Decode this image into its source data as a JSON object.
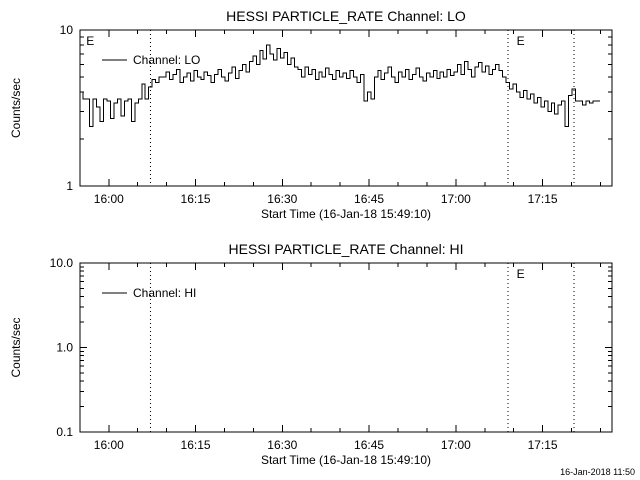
{
  "page": {
    "timestamp": "16-Jan-2018 11:50",
    "background": "#ffffff",
    "foreground": "#000000"
  },
  "chart_data": [
    {
      "type": "line",
      "title": "HESSI PARTICLE_RATE Channel: LO",
      "xlabel": "Start Time (16-Jan-18 15:49:10)",
      "ylabel": "Counts/sec",
      "yscale": "log",
      "ylim": [
        1,
        10
      ],
      "ytick_labels": [
        "1",
        "10"
      ],
      "xlim_hours": [
        15.917,
        17.45
      ],
      "xticks_hours": [
        16.0,
        16.25,
        16.5,
        16.75,
        17.0,
        17.25
      ],
      "xtick_labels": [
        "16:00",
        "16:15",
        "16:30",
        "16:45",
        "17:00",
        "17:15"
      ],
      "legend": {
        "label": "Channel: LO"
      },
      "event_lines_hours": [
        16.12,
        17.15,
        17.34
      ],
      "event_labels": [
        {
          "label": "E",
          "hour": 15.935
        },
        {
          "label": "E",
          "hour": 17.175
        }
      ],
      "grid": false,
      "series": [
        {
          "name": "Channel: LO",
          "t0_hours": 15.92,
          "dt_hours": 0.01,
          "values": [
            4.0,
            3.6,
            3.6,
            2.4,
            3.6,
            3.2,
            2.6,
            3.6,
            3.5,
            2.7,
            3.4,
            3.6,
            2.8,
            3.5,
            3.6,
            2.6,
            3.4,
            3.6,
            4.5,
            3.6,
            4.3,
            4.8,
            4.6,
            5.0,
            5.0,
            5.4,
            4.8,
            5.2,
            5.6,
            4.6,
            5.0,
            5.3,
            4.7,
            5.5,
            5.0,
            4.8,
            5.4,
            5.1,
            4.6,
            5.2,
            5.6,
            5.0,
            4.7,
            5.3,
            5.8,
            4.9,
            5.5,
            6.0,
            5.4,
            6.3,
            6.8,
            6.0,
            7.4,
            6.5,
            8.0,
            7.0,
            6.4,
            7.6,
            6.6,
            7.2,
            6.0,
            6.6,
            5.8,
            5.6,
            5.0,
            5.8,
            5.2,
            5.6,
            4.8,
            5.4,
            5.0,
            5.7,
            5.2,
            4.8,
            5.5,
            5.0,
            5.3,
            4.9,
            5.5,
            5.0,
            4.6,
            5.2,
            3.5,
            4.0,
            3.6,
            5.0,
            5.5,
            4.8,
            5.3,
            5.8,
            5.0,
            4.6,
            5.4,
            5.0,
            5.6,
            4.8,
            5.2,
            5.7,
            5.0,
            4.7,
            5.3,
            5.0,
            5.5,
            4.9,
            5.4,
            5.0,
            5.6,
            5.1,
            5.4,
            6.0,
            5.2,
            6.3,
            5.6,
            5.0,
            5.8,
            6.2,
            5.4,
            5.9,
            5.2,
            5.6,
            6.0,
            5.5,
            5.0,
            4.6,
            4.2,
            4.5,
            4.0,
            3.7,
            4.1,
            3.6,
            3.9,
            3.4,
            3.7,
            3.2,
            3.5,
            3.0,
            3.4,
            2.9,
            3.3,
            3.5,
            2.4,
            3.8,
            4.2,
            3.5,
            3.5,
            3.3,
            3.5,
            3.4,
            3.5,
            3.5
          ]
        }
      ]
    },
    {
      "type": "line",
      "title": "HESSI PARTICLE_RATE Channel: HI",
      "xlabel": "Start Time (16-Jan-18 15:49:10)",
      "ylabel": "Counts/sec",
      "yscale": "log",
      "ylim": [
        0.1,
        10
      ],
      "ytick_labels": [
        "0.1",
        "1.0",
        "10.0"
      ],
      "xlim_hours": [
        15.917,
        17.45
      ],
      "xticks_hours": [
        16.0,
        16.25,
        16.5,
        16.75,
        17.0,
        17.25
      ],
      "xtick_labels": [
        "16:00",
        "16:15",
        "16:30",
        "16:45",
        "17:00",
        "17:15"
      ],
      "legend": {
        "label": "Channel: HI"
      },
      "event_lines_hours": [
        16.12,
        17.15,
        17.34
      ],
      "event_labels": [
        {
          "label": "E",
          "hour": 17.175
        }
      ],
      "grid": false,
      "series": [
        {
          "name": "Channel: HI",
          "t0_hours": 15.92,
          "dt_hours": 0.01,
          "values": []
        }
      ]
    }
  ]
}
